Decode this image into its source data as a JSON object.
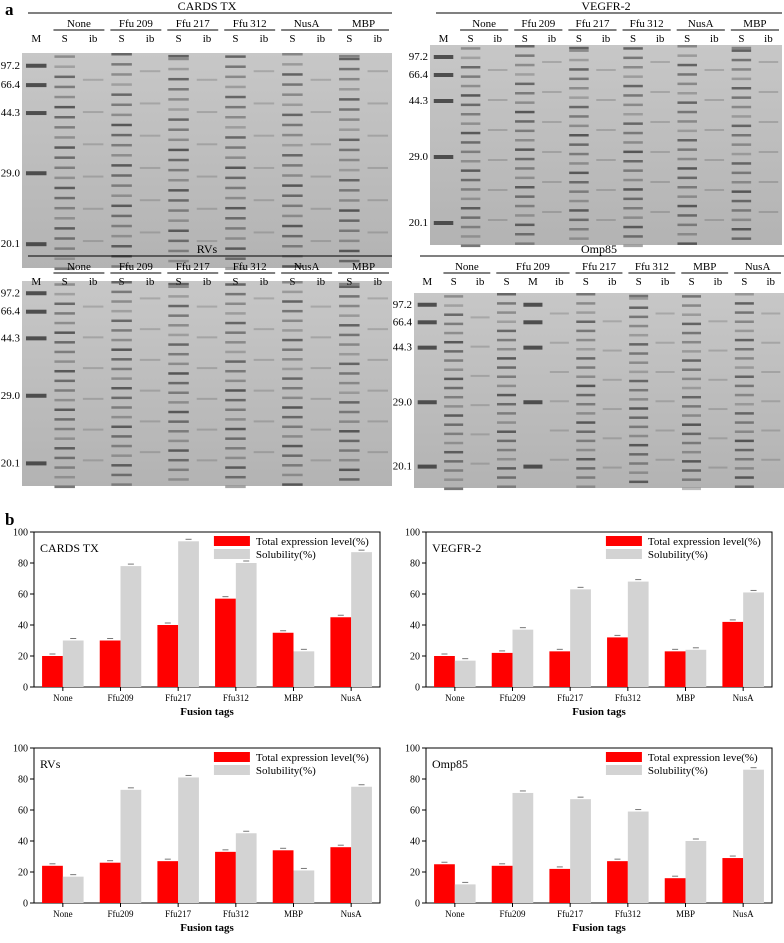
{
  "figure": {
    "panel_a": "a",
    "panel_b": "b"
  },
  "gels": [
    {
      "id": "cards",
      "title": "CARDS TX",
      "marker_label": "M",
      "groups": [
        {
          "name": "None",
          "lanes": [
            "S",
            "ib"
          ]
        },
        {
          "name": "Ffu209",
          "lanes": [
            "S",
            "ib"
          ]
        },
        {
          "name": "Ffu217",
          "lanes": [
            "S",
            "ib"
          ]
        },
        {
          "name": "Ffu312",
          "lanes": [
            "S",
            "ib"
          ]
        },
        {
          "name": "NusA",
          "lanes": [
            "S",
            "ib"
          ]
        },
        {
          "name": "MBP",
          "lanes": [
            "S",
            "ib"
          ]
        }
      ],
      "mw_markers": [
        "97.2",
        "66.4",
        "44.3",
        "29.0",
        "20.1"
      ]
    },
    {
      "id": "vegfr",
      "title": "VEGFR-2",
      "marker_label": "M",
      "groups": [
        {
          "name": "None",
          "lanes": [
            "S",
            "ib"
          ]
        },
        {
          "name": "Ffu209",
          "lanes": [
            "S",
            "ib"
          ]
        },
        {
          "name": "Ffu217",
          "lanes": [
            "S",
            "ib"
          ]
        },
        {
          "name": "Ffu312",
          "lanes": [
            "S",
            "ib"
          ]
        },
        {
          "name": "NusA",
          "lanes": [
            "S",
            "ib"
          ]
        },
        {
          "name": "MBP",
          "lanes": [
            "S",
            "ib"
          ]
        }
      ],
      "mw_markers": [
        "97.2",
        "66.4",
        "44.3",
        "29.0",
        "20.1"
      ]
    },
    {
      "id": "rvs",
      "title": "RVs",
      "marker_label": "M",
      "groups": [
        {
          "name": "None",
          "lanes": [
            "S",
            "ib"
          ]
        },
        {
          "name": "Ffu209",
          "lanes": [
            "S",
            "ib"
          ]
        },
        {
          "name": "Ffu217",
          "lanes": [
            "S",
            "ib"
          ]
        },
        {
          "name": "Ffu312",
          "lanes": [
            "S",
            "ib"
          ]
        },
        {
          "name": "NusA",
          "lanes": [
            "S",
            "ib"
          ]
        },
        {
          "name": "MBP",
          "lanes": [
            "S",
            "ib"
          ]
        }
      ],
      "mw_markers": [
        "97.2",
        "66.4",
        "44.3",
        "29.0",
        "20.1"
      ]
    },
    {
      "id": "omp",
      "title": "Omp85",
      "marker_label": "M",
      "groups": [
        {
          "name": "None",
          "lanes": [
            "S",
            "ib"
          ]
        },
        {
          "name": "Ffu209",
          "lanes": [
            "S",
            "M",
            "ib"
          ]
        },
        {
          "name": "Ffu217",
          "lanes": [
            "S",
            "ib"
          ]
        },
        {
          "name": "Ffu312",
          "lanes": [
            "S",
            "ib"
          ]
        },
        {
          "name": "MBP",
          "lanes": [
            "S",
            "ib"
          ]
        },
        {
          "name": "NusA",
          "lanes": [
            "S",
            "ib"
          ]
        }
      ],
      "mw_markers": [
        "97.2",
        "66.4",
        "44.3",
        "29.0",
        "20.1"
      ]
    }
  ],
  "chart_data": [
    {
      "type": "bar",
      "title": "CARDS TX",
      "xlabel": "Fusion tags",
      "ylabel": "",
      "ylim": [
        0,
        100
      ],
      "yticks": [
        0,
        20,
        40,
        60,
        80,
        100
      ],
      "categories": [
        "None",
        "Ffu209",
        "Ffu217",
        "Ffu312",
        "MBP",
        "NusA"
      ],
      "series": [
        {
          "name": "Total expression level(%)",
          "color": "#ff0000",
          "values": [
            20,
            30,
            40,
            57,
            35,
            45
          ]
        },
        {
          "name": "Solubility(%)",
          "color": "#d3d3d3",
          "values": [
            30,
            78,
            94,
            80,
            23,
            87
          ]
        }
      ]
    },
    {
      "type": "bar",
      "title": "VEGFR-2",
      "xlabel": "Fusion tags",
      "ylabel": "",
      "ylim": [
        0,
        100
      ],
      "yticks": [
        0,
        20,
        40,
        60,
        80,
        100
      ],
      "categories": [
        "None",
        "Ffu209",
        "Ffu217",
        "Ffu312",
        "MBP",
        "NusA"
      ],
      "series": [
        {
          "name": "Total expression level(%)",
          "color": "#ff0000",
          "values": [
            20,
            22,
            23,
            32,
            23,
            42
          ]
        },
        {
          "name": "Solubility(%)",
          "color": "#d3d3d3",
          "values": [
            17,
            37,
            63,
            68,
            24,
            61
          ]
        }
      ]
    },
    {
      "type": "bar",
      "title": "RVs",
      "xlabel": "Fusion tags",
      "ylabel": "",
      "ylim": [
        0,
        100
      ],
      "yticks": [
        0,
        20,
        40,
        60,
        80,
        100
      ],
      "categories": [
        "None",
        "Ffu209",
        "Ffu217",
        "Ffu312",
        "MBP",
        "NusA"
      ],
      "series": [
        {
          "name": "Total expression level(%)",
          "color": "#ff0000",
          "values": [
            24,
            26,
            27,
            33,
            34,
            36
          ]
        },
        {
          "name": "Solubility(%)",
          "color": "#d3d3d3",
          "values": [
            17,
            73,
            81,
            45,
            21,
            75
          ]
        }
      ]
    },
    {
      "type": "bar",
      "title": "Omp85",
      "xlabel": "Fusion tags",
      "ylabel": "",
      "ylim": [
        0,
        100
      ],
      "yticks": [
        0,
        20,
        40,
        60,
        80,
        100
      ],
      "categories": [
        "None",
        "Ffu209",
        "Ffu217",
        "Ffu312",
        "MBP",
        "NusA"
      ],
      "series": [
        {
          "name": "Total expression leve(%)",
          "color": "#ff0000",
          "values": [
            25,
            24,
            22,
            27,
            16,
            29
          ]
        },
        {
          "name": "Solubility(%)",
          "color": "#d3d3d3",
          "values": [
            12,
            71,
            67,
            59,
            40,
            86
          ]
        }
      ]
    }
  ]
}
